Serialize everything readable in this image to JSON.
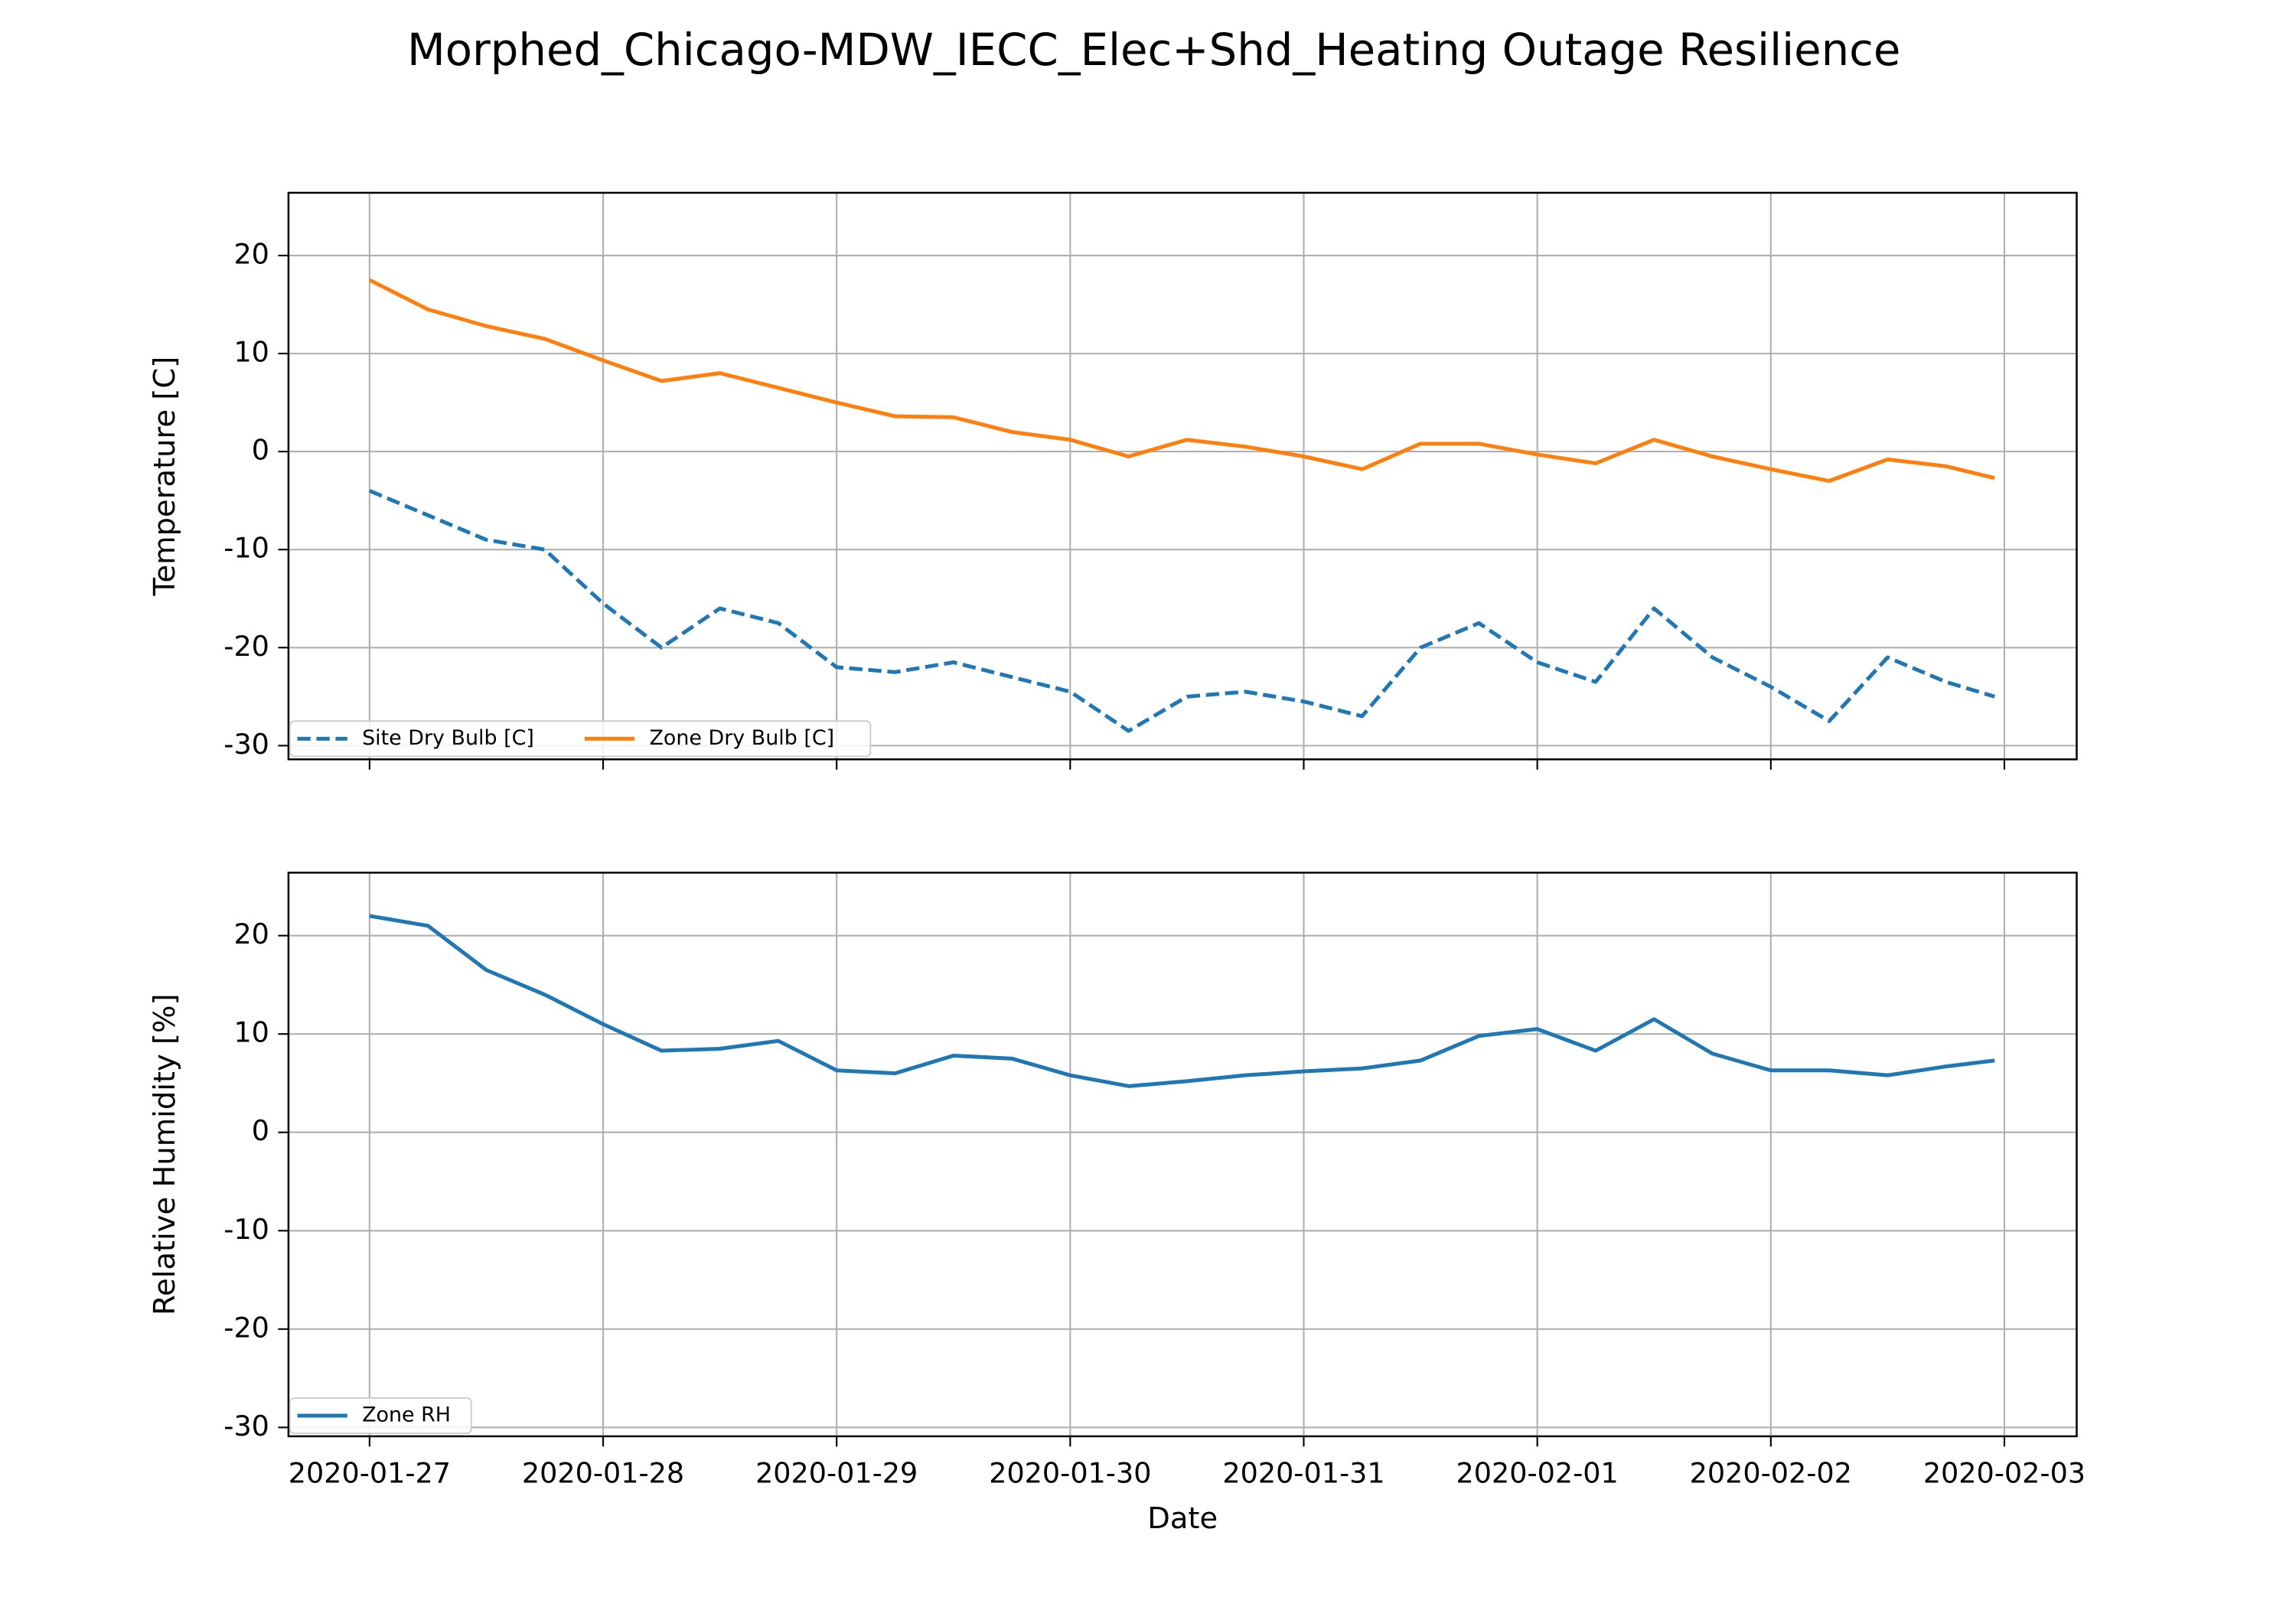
{
  "chart_data": [
    {
      "type": "line",
      "title": "Morphed_Chicago-MDW_IECC_Elec+Shd_Heating Outage Resilience",
      "ylabel": "Temperature [C]",
      "x": [
        "2020-01-27 00:00",
        "2020-01-27 06:00",
        "2020-01-27 12:00",
        "2020-01-27 18:00",
        "2020-01-28 00:00",
        "2020-01-28 06:00",
        "2020-01-28 12:00",
        "2020-01-28 18:00",
        "2020-01-29 00:00",
        "2020-01-29 06:00",
        "2020-01-29 12:00",
        "2020-01-29 18:00",
        "2020-01-30 00:00",
        "2020-01-30 06:00",
        "2020-01-30 12:00",
        "2020-01-30 18:00",
        "2020-01-31 00:00",
        "2020-01-31 06:00",
        "2020-01-31 12:00",
        "2020-01-31 18:00",
        "2020-02-01 00:00",
        "2020-02-01 06:00",
        "2020-02-01 12:00",
        "2020-02-01 18:00",
        "2020-02-02 00:00",
        "2020-02-02 06:00",
        "2020-02-02 12:00",
        "2020-02-02 18:00",
        "2020-02-02 23:00"
      ],
      "series": [
        {
          "name": "Site Dry Bulb [C]",
          "color": "#1f77b4",
          "linestyle": "dashed",
          "values": [
            -4,
            -6.5,
            -9,
            -10,
            -15.5,
            -20,
            -16,
            -17.5,
            -22,
            -22.5,
            -21.5,
            -23,
            -24.5,
            -28.5,
            -25,
            -24.5,
            -25.5,
            -27,
            -20,
            -17.5,
            -21.5,
            -23.5,
            -16,
            -21,
            -24,
            -27.5,
            -21,
            -23.5,
            -25
          ]
        },
        {
          "name": "Zone Dry Bulb [C]",
          "color": "#ff7f0e",
          "linestyle": "solid",
          "values": [
            17.5,
            14.5,
            12.8,
            11.5,
            9.3,
            7.2,
            8,
            6.5,
            5,
            3.6,
            3.5,
            2,
            1.2,
            -0.5,
            1.2,
            0.5,
            -0.5,
            -1.8,
            0.8,
            0.8,
            -0.3,
            -1.2,
            1.2,
            -0.5,
            -1.8,
            -3,
            -0.8,
            -1.5,
            -2.7
          ]
        }
      ],
      "xlim": [
        "2020-01-26 15:40",
        "2020-02-03 07:26"
      ],
      "xticks": [
        "2020-01-27",
        "2020-01-28",
        "2020-01-29",
        "2020-01-30",
        "2020-01-31",
        "2020-02-01",
        "2020-02-02",
        "2020-02-03"
      ],
      "xtick_labels": false,
      "ylim": [
        -31.4,
        26.4
      ],
      "yticks": [
        -30,
        -20,
        -10,
        0,
        10,
        20
      ],
      "grid": true,
      "legend": "lower left",
      "legend_ncol": 2
    },
    {
      "type": "line",
      "ylabel": "Relative Humidity [%]",
      "xlabel": "Date",
      "x": [
        "2020-01-27 00:00",
        "2020-01-27 06:00",
        "2020-01-27 12:00",
        "2020-01-27 18:00",
        "2020-01-28 00:00",
        "2020-01-28 06:00",
        "2020-01-28 12:00",
        "2020-01-28 18:00",
        "2020-01-29 00:00",
        "2020-01-29 06:00",
        "2020-01-29 12:00",
        "2020-01-29 18:00",
        "2020-01-30 00:00",
        "2020-01-30 06:00",
        "2020-01-30 12:00",
        "2020-01-30 18:00",
        "2020-01-31 00:00",
        "2020-01-31 06:00",
        "2020-01-31 12:00",
        "2020-01-31 18:00",
        "2020-02-01 00:00",
        "2020-02-01 06:00",
        "2020-02-01 12:00",
        "2020-02-01 18:00",
        "2020-02-02 00:00",
        "2020-02-02 06:00",
        "2020-02-02 12:00",
        "2020-02-02 18:00",
        "2020-02-02 23:00"
      ],
      "series": [
        {
          "name": "Zone RH",
          "color": "#1f77b4",
          "linestyle": "solid",
          "values": [
            22,
            21,
            16.5,
            14,
            11,
            8.3,
            8.5,
            9.3,
            6.3,
            6,
            7.8,
            7.5,
            5.8,
            4.7,
            5.2,
            5.8,
            6.2,
            6.5,
            7.3,
            9.8,
            10.5,
            8.3,
            11.5,
            8,
            6.3,
            6.3,
            5.8,
            6.7,
            7.3
          ]
        }
      ],
      "xlim": [
        "2020-01-26 15:40",
        "2020-02-03 07:26"
      ],
      "xticks": [
        "2020-01-27",
        "2020-01-28",
        "2020-01-29",
        "2020-01-30",
        "2020-01-31",
        "2020-02-01",
        "2020-02-02",
        "2020-02-03"
      ],
      "xtick_labels": true,
      "ylim": [
        -30.9,
        26.4
      ],
      "yticks": [
        -30,
        -20,
        -10,
        0,
        10,
        20
      ],
      "grid": true,
      "legend": "lower left",
      "legend_ncol": 1
    }
  ]
}
